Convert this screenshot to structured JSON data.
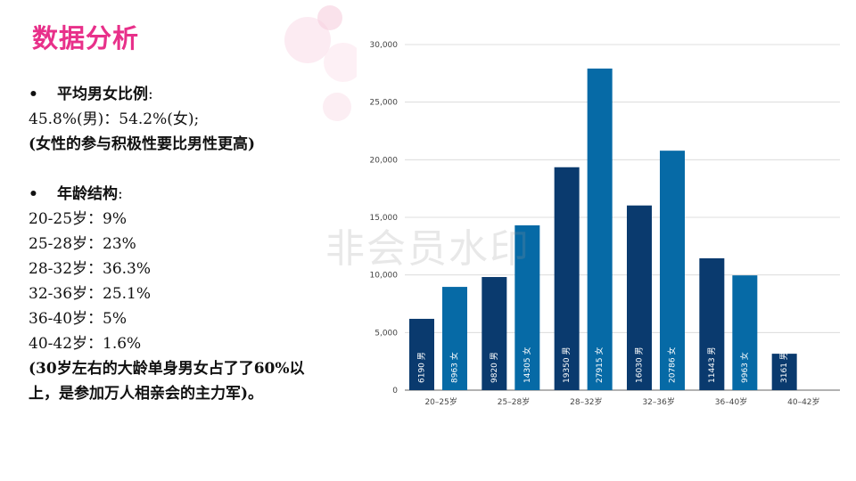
{
  "slide": {
    "title": "数据分析",
    "watermark": "非会员水印"
  },
  "text": {
    "ratio_bullet": "•",
    "ratio_heading": "平均男女比例",
    "ratio_colon": ":",
    "ratio_value": "45.8%(男)：54.2%(女);",
    "ratio_note": "(女性的参与积极性要比男性更高)",
    "age_bullet": "•",
    "age_heading": "年龄结构",
    "age_colon": ":",
    "age_items": [
      "20-25岁：9%",
      "25-28岁：23%",
      "28-32岁：36.3%",
      "32-36岁：25.1%",
      "36-40岁：5%",
      "40-42岁：1.6%"
    ],
    "conclusion": "(30岁左右的大龄单身男女占了了60%以上，是参加万人相亲会的主力军)。"
  },
  "chart_data": {
    "type": "bar",
    "categories": [
      "20–25岁",
      "25–28岁",
      "28–32岁",
      "32–36岁",
      "36–40岁",
      "40–42岁"
    ],
    "series": [
      {
        "name": "男",
        "values": [
          6190,
          9820,
          19350,
          16030,
          11443,
          3161
        ],
        "color": "#0a3a6e"
      },
      {
        "name": "女",
        "values": [
          8963,
          14305,
          27915,
          20786,
          9963,
          null
        ],
        "color": "#066aa6"
      }
    ],
    "yticks": [
      "0",
      "5,000",
      "10,000",
      "15,000",
      "20,000",
      "25,000",
      "30,000"
    ],
    "ylim": [
      0,
      30000
    ],
    "grid": true,
    "legend": "none"
  }
}
